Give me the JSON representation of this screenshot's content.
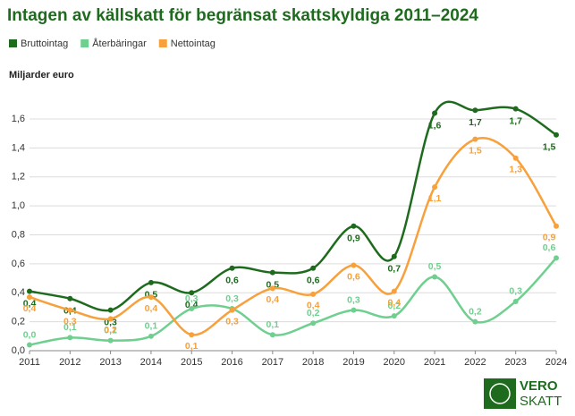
{
  "chart_data": {
    "type": "line",
    "title": "Intagen av källskatt för begränsat skattskyldiga 2011–2024",
    "y_label": "Miljarder euro",
    "x": [
      2011,
      2012,
      2013,
      2014,
      2015,
      2016,
      2017,
      2018,
      2019,
      2020,
      2021,
      2022,
      2023,
      2024
    ],
    "xlim": [
      2011,
      2024
    ],
    "xticks": [
      2011,
      2012,
      2013,
      2014,
      2015,
      2016,
      2017,
      2018,
      2019,
      2020,
      2021,
      2022,
      2023,
      2024
    ],
    "ylim": [
      0,
      1.6
    ],
    "yticks": [
      {
        "value": 0,
        "label": "0,0"
      },
      {
        "value": 0.2,
        "label": "0,2"
      },
      {
        "value": 0.4,
        "label": "0,4"
      },
      {
        "value": 0.6,
        "label": "0,6"
      },
      {
        "value": 0.8,
        "label": "0,8"
      },
      {
        "value": 1.0,
        "label": "1,0"
      },
      {
        "value": 1.2,
        "label": "1,2"
      },
      {
        "value": 1.4,
        "label": "1,4"
      },
      {
        "value": 1.6,
        "label": "1,6"
      }
    ],
    "grid": true,
    "legend": "top-left",
    "series": [
      {
        "name": "Bruttointag",
        "color": "#1e6b1e",
        "values": [
          0.41,
          0.36,
          0.28,
          0.47,
          0.4,
          0.57,
          0.54,
          0.57,
          0.86,
          0.65,
          1.64,
          1.66,
          1.67,
          1.49
        ],
        "value_labels": [
          "0,4",
          "0,4",
          "0,3",
          "0,5",
          "0,4",
          "0,6",
          "0,5",
          "0,6",
          "0,9",
          "0,7",
          "1,6",
          "1,7",
          "1,7",
          "1,5"
        ]
      },
      {
        "name": "Återbäringar",
        "color": "#6fcf8f",
        "values": [
          0.04,
          0.09,
          0.07,
          0.1,
          0.29,
          0.29,
          0.11,
          0.19,
          0.28,
          0.24,
          0.51,
          0.2,
          0.34,
          0.64
        ],
        "value_labels": [
          "0,0",
          "0,1",
          "0,1",
          "0,1",
          "0,3",
          "0,3",
          "0,1",
          "0,2",
          "0,3",
          "0,2",
          "0,5",
          "0,2",
          "0,3",
          "0,6"
        ]
      },
      {
        "name": "Nettointag",
        "color": "#f7a03c",
        "values": [
          0.37,
          0.28,
          0.22,
          0.37,
          0.11,
          0.28,
          0.43,
          0.39,
          0.59,
          0.41,
          1.13,
          1.46,
          1.33,
          0.86
        ],
        "value_labels": [
          "0,4",
          "0,3",
          "0,2",
          "0,4",
          "0,1",
          "0,3",
          "0,4",
          "0,4",
          "0,6",
          "0,4",
          "1,1",
          "1,5",
          "1,3",
          "0,9"
        ]
      }
    ]
  },
  "logo": {
    "line1": "VERO",
    "line2": "SKATT"
  }
}
